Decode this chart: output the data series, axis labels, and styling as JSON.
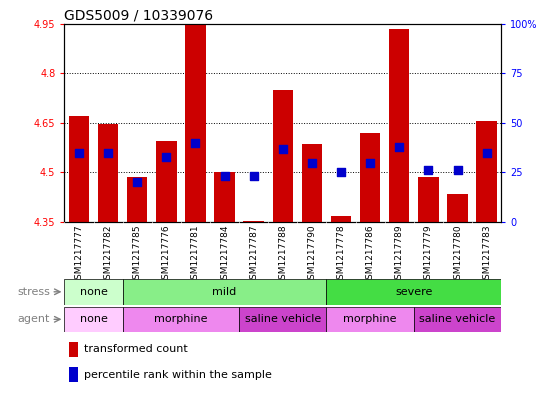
{
  "title": "GDS5009 / 10339076",
  "samples": [
    "GSM1217777",
    "GSM1217782",
    "GSM1217785",
    "GSM1217776",
    "GSM1217781",
    "GSM1217784",
    "GSM1217787",
    "GSM1217788",
    "GSM1217790",
    "GSM1217778",
    "GSM1217786",
    "GSM1217789",
    "GSM1217779",
    "GSM1217780",
    "GSM1217783"
  ],
  "transformed_count": [
    4.67,
    4.645,
    4.487,
    4.595,
    4.948,
    4.502,
    4.353,
    4.748,
    4.585,
    4.368,
    4.618,
    4.934,
    4.487,
    4.435,
    4.655
  ],
  "percentile_rank": [
    35,
    35,
    20,
    33,
    40,
    23,
    23,
    37,
    30,
    25,
    30,
    38,
    26,
    26,
    35
  ],
  "base_value": 4.35,
  "ylim_min": 4.35,
  "ylim_max": 4.95,
  "yticks": [
    4.35,
    4.5,
    4.65,
    4.8,
    4.95
  ],
  "ytick_labels": [
    "4.35",
    "4.5",
    "4.65",
    "4.8",
    "4.95"
  ],
  "right_yticks": [
    0,
    25,
    50,
    75,
    100
  ],
  "right_ytick_labels": [
    "0",
    "25",
    "50",
    "75",
    "100%"
  ],
  "bar_color": "#cc0000",
  "dot_color": "#0000cc",
  "stress_groups": [
    {
      "label": "none",
      "start": 0,
      "end": 2,
      "color": "#ccffcc"
    },
    {
      "label": "mild",
      "start": 2,
      "end": 9,
      "color": "#88ee88"
    },
    {
      "label": "severe",
      "start": 9,
      "end": 15,
      "color": "#44dd44"
    }
  ],
  "agent_groups": [
    {
      "label": "none",
      "start": 0,
      "end": 2,
      "color": "#ffccff"
    },
    {
      "label": "morphine",
      "start": 2,
      "end": 6,
      "color": "#ee88ee"
    },
    {
      "label": "saline vehicle",
      "start": 6,
      "end": 9,
      "color": "#cc44cc"
    },
    {
      "label": "morphine",
      "start": 9,
      "end": 12,
      "color": "#ee88ee"
    },
    {
      "label": "saline vehicle",
      "start": 12,
      "end": 15,
      "color": "#cc44cc"
    }
  ],
  "bar_width": 0.7,
  "dot_size": 30,
  "title_fontsize": 10,
  "tick_fontsize": 7,
  "label_fontsize": 8,
  "legend_fontsize": 8,
  "sample_fontsize": 6.5
}
